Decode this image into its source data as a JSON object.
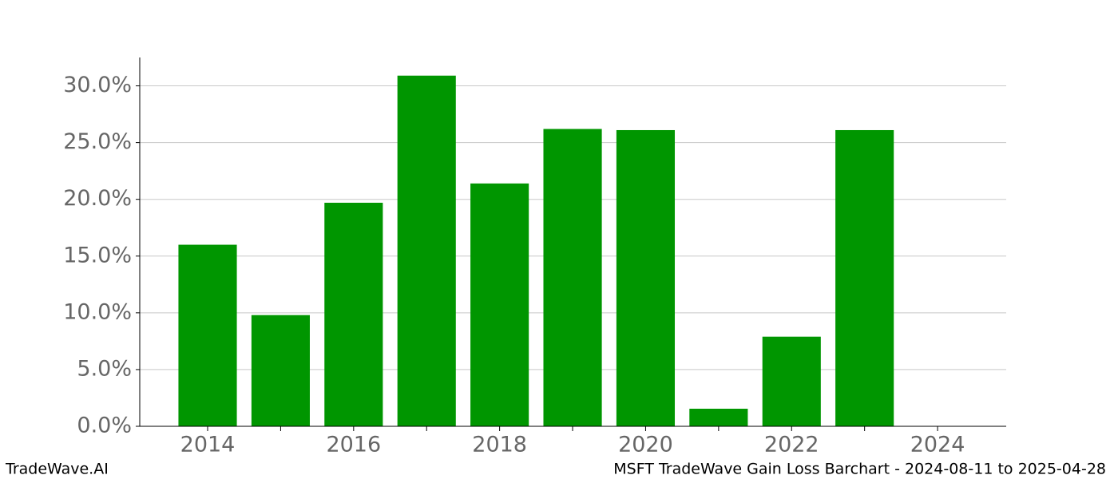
{
  "chart_data": {
    "type": "bar",
    "title": "MSFT TradeWave Gain Loss Barchart - 2024-08-11 to 2025-04-28",
    "credit": "TradeWave.AI",
    "x": [
      2014,
      2015,
      2016,
      2017,
      2018,
      2019,
      2020,
      2021,
      2022,
      2023
    ],
    "values": [
      16.0,
      9.8,
      19.7,
      30.9,
      21.4,
      26.2,
      26.1,
      1.55,
      7.9,
      26.1
    ],
    "color": "#009600",
    "bar_width": 0.8,
    "xlim": [
      2013.07,
      2024.94
    ],
    "xticks": [
      2014,
      2016,
      2018,
      2020,
      2022,
      2024
    ],
    "xminor_ticks": [
      2015,
      2017,
      2019,
      2021,
      2023
    ],
    "ylim": [
      0,
      32.5
    ],
    "yticks": [
      {
        "value": 0,
        "label": "0.0%"
      },
      {
        "value": 5,
        "label": "5.0%"
      },
      {
        "value": 10,
        "label": "10.0%"
      },
      {
        "value": 15,
        "label": "15.0%"
      },
      {
        "value": 20,
        "label": "20.0%"
      },
      {
        "value": 25,
        "label": "25.0%"
      },
      {
        "value": 30,
        "label": "30.0%"
      }
    ],
    "grid": true
  }
}
